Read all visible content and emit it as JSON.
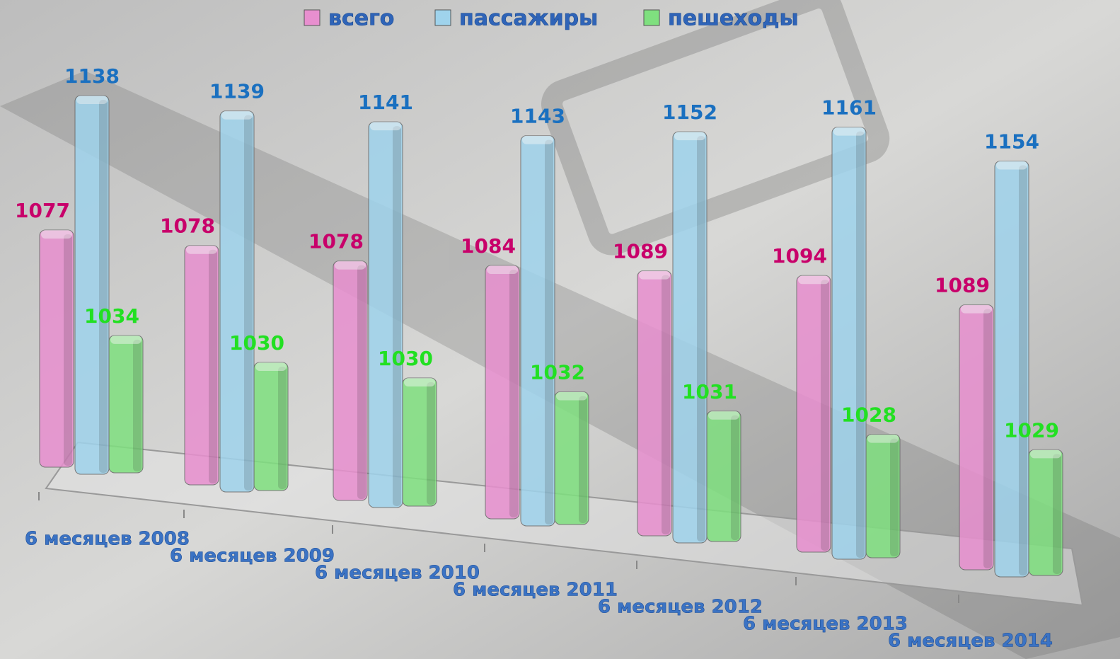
{
  "chart_data": {
    "type": "bar3d",
    "categories": [
      "6 месяцев 2008",
      "6 месяцев 2009",
      "6 месяцев 2010",
      "6 месяцев 2011",
      "6 месяцев 2012",
      "6 месяцев 2013",
      "6 месяцев 2014"
    ],
    "series": [
      {
        "name": "всего",
        "color": "#e88fcf",
        "values": [
          1077,
          1078,
          1078,
          1084,
          1089,
          1094,
          1089
        ]
      },
      {
        "name": "пассажиры",
        "color": "#9fd3ec",
        "values": [
          1138,
          1139,
          1141,
          1143,
          1152,
          1161,
          1154
        ]
      },
      {
        "name": "пешеходы",
        "color": "#7fe07f",
        "values": [
          1034,
          1030,
          1030,
          1032,
          1031,
          1028,
          1029
        ]
      }
    ],
    "legend": "top"
  }
}
